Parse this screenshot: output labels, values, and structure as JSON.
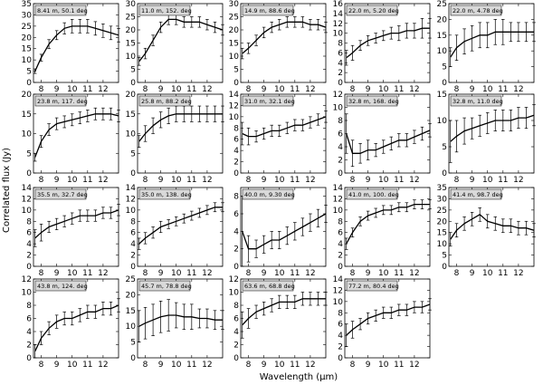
{
  "figure": {
    "xlabel": "Wavelength (μm)",
    "ylabel": "Correlated flux (Jy)"
  },
  "chart_data": [
    {
      "type": "line",
      "label": "8.41 m, 50.1 deg",
      "xlim": [
        7.5,
        13
      ],
      "ylim": [
        0,
        35
      ],
      "yticks": [
        0,
        5,
        10,
        15,
        20,
        25,
        30,
        35
      ],
      "x": [
        7.6,
        8.0,
        8.5,
        9.0,
        9.5,
        10.0,
        10.5,
        11.0,
        11.5,
        12.0,
        12.5,
        13.0
      ],
      "y": [
        5,
        11,
        17,
        21,
        24,
        25,
        25,
        25,
        24,
        23,
        22,
        21
      ],
      "err": [
        1,
        1.5,
        2,
        2,
        2.5,
        3,
        3,
        3,
        3,
        3,
        3,
        3
      ]
    },
    {
      "type": "line",
      "label": "11.0 m, 152. deg",
      "xlim": [
        7.5,
        13
      ],
      "ylim": [
        0,
        30
      ],
      "yticks": [
        0,
        5,
        10,
        15,
        20,
        25,
        30
      ],
      "x": [
        7.6,
        8.0,
        8.5,
        9.0,
        9.5,
        10.0,
        10.5,
        11.0,
        11.5,
        12.0,
        12.5,
        13.0
      ],
      "y": [
        8,
        11,
        16,
        21,
        24,
        24,
        23,
        23,
        23,
        22,
        21,
        20
      ],
      "err": [
        1.5,
        2,
        2,
        2,
        2,
        2,
        2,
        2,
        2,
        2,
        2,
        2
      ]
    },
    {
      "type": "line",
      "label": "14.9 m, 88.6 deg",
      "xlim": [
        7.5,
        13
      ],
      "ylim": [
        0,
        30
      ],
      "yticks": [
        0,
        5,
        10,
        15,
        20,
        25,
        30
      ],
      "x": [
        7.6,
        8.0,
        8.5,
        9.0,
        9.5,
        10.0,
        10.5,
        11.0,
        11.5,
        12.0,
        12.5,
        13.0
      ],
      "y": [
        11,
        13,
        16,
        19,
        21,
        22,
        23,
        23,
        23,
        22,
        22,
        21
      ],
      "err": [
        2,
        2,
        2,
        2,
        2,
        2,
        2,
        2,
        2,
        2,
        2,
        2
      ]
    },
    {
      "type": "line",
      "label": "22.0 m, 5.20 deg",
      "xlim": [
        7.5,
        13
      ],
      "ylim": [
        0,
        16
      ],
      "yticks": [
        0,
        2,
        4,
        6,
        8,
        10,
        12,
        14,
        16
      ],
      "x": [
        7.6,
        8.0,
        8.5,
        9.0,
        9.5,
        10.0,
        10.5,
        11.0,
        11.5,
        12.0,
        12.5,
        13.0
      ],
      "y": [
        5,
        6,
        7.5,
        8.5,
        9,
        9.5,
        10,
        10,
        10.5,
        10.5,
        11,
        11
      ],
      "err": [
        1.5,
        1.5,
        1,
        1,
        1,
        1,
        1.2,
        1.5,
        1.5,
        1.5,
        2,
        2
      ]
    },
    {
      "type": "line",
      "label": "22.0 m, 4.78 deg",
      "xlim": [
        7.5,
        13
      ],
      "ylim": [
        0,
        25
      ],
      "yticks": [
        0,
        5,
        10,
        15,
        20,
        25
      ],
      "x": [
        7.6,
        8.0,
        8.5,
        9.0,
        9.5,
        10.0,
        10.5,
        11.0,
        11.5,
        12.0,
        12.5,
        13.0
      ],
      "y": [
        8,
        11,
        13,
        14,
        15,
        15,
        16,
        16,
        16,
        16,
        16,
        16
      ],
      "err": [
        3,
        4,
        4,
        4,
        4,
        4,
        4,
        4,
        3,
        3,
        3,
        3
      ]
    },
    {
      "type": "line",
      "label": "23.8 m, 117. deg",
      "xlim": [
        7.5,
        13
      ],
      "ylim": [
        0,
        20
      ],
      "yticks": [
        0,
        5,
        10,
        15,
        20
      ],
      "x": [
        7.6,
        8.0,
        8.5,
        9.0,
        9.5,
        10.0,
        10.5,
        11.0,
        11.5,
        12.0,
        12.5,
        13.0
      ],
      "y": [
        4,
        8,
        11,
        12.5,
        13,
        13.5,
        14,
        14.5,
        15,
        15,
        15,
        14.5
      ],
      "err": [
        1,
        1.5,
        1.5,
        1.5,
        1.5,
        1.5,
        1.5,
        1.5,
        1.5,
        1.5,
        1.5,
        1.5
      ]
    },
    {
      "type": "line",
      "label": "25.8 m, 88.2 deg",
      "xlim": [
        7.5,
        13
      ],
      "ylim": [
        0,
        20
      ],
      "yticks": [
        0,
        5,
        10,
        15,
        20
      ],
      "x": [
        7.6,
        8.0,
        8.5,
        9.0,
        9.5,
        10.0,
        10.5,
        11.0,
        11.5,
        12.0,
        12.5,
        13.0
      ],
      "y": [
        8,
        10,
        12,
        13.5,
        14.5,
        15,
        15,
        15,
        15,
        15,
        15,
        15
      ],
      "err": [
        1.5,
        2,
        2,
        2,
        2,
        2,
        2,
        2,
        2,
        2,
        2,
        2
      ]
    },
    {
      "type": "line",
      "label": "31.0 m, 32.1 deg",
      "xlim": [
        7.5,
        13
      ],
      "ylim": [
        0,
        14
      ],
      "yticks": [
        0,
        2,
        4,
        6,
        8,
        10,
        12,
        14
      ],
      "x": [
        7.6,
        8.0,
        8.5,
        9.0,
        9.5,
        10.0,
        10.5,
        11.0,
        11.5,
        12.0,
        12.5,
        13.0
      ],
      "y": [
        7,
        6.5,
        6.5,
        7,
        7.5,
        7.5,
        8,
        8.5,
        8.5,
        9,
        9.5,
        10
      ],
      "err": [
        2,
        1.5,
        1,
        1,
        1,
        1,
        1,
        1,
        1,
        1,
        1,
        1
      ]
    },
    {
      "type": "line",
      "label": "32.8 m, 168. deg",
      "xlim": [
        7.5,
        13
      ],
      "ylim": [
        0,
        12
      ],
      "yticks": [
        0,
        2,
        4,
        6,
        8,
        10,
        12
      ],
      "x": [
        7.6,
        8.0,
        8.5,
        9.0,
        9.5,
        10.0,
        10.5,
        11.0,
        11.5,
        12.0,
        12.5,
        13.0
      ],
      "y": [
        6,
        3,
        3,
        3.5,
        3.5,
        4,
        4.5,
        5,
        5,
        5.5,
        6,
        6.5
      ],
      "err": [
        3,
        2,
        1.5,
        1.5,
        1,
        1,
        1,
        1,
        1,
        1,
        1,
        1
      ]
    },
    {
      "type": "line",
      "label": "32.8 m, 11.0 deg",
      "xlim": [
        7.5,
        13
      ],
      "ylim": [
        0,
        15
      ],
      "yticks": [
        0,
        5,
        10,
        15
      ],
      "x": [
        7.6,
        8.0,
        8.5,
        9.0,
        9.5,
        10.0,
        10.5,
        11.0,
        11.5,
        12.0,
        12.5,
        13.0
      ],
      "y": [
        6,
        7,
        8,
        8.5,
        9,
        9.5,
        10,
        10,
        10,
        10.5,
        10.5,
        11
      ],
      "err": [
        4,
        3,
        2.5,
        2,
        2,
        2,
        2,
        2,
        2,
        2,
        2,
        2
      ]
    },
    {
      "type": "line",
      "label": "35.5 m, 32.7 deg",
      "xlim": [
        7.5,
        13
      ],
      "ylim": [
        0,
        14
      ],
      "yticks": [
        0,
        2,
        4,
        6,
        8,
        10,
        12,
        14
      ],
      "x": [
        7.6,
        8.0,
        8.5,
        9.0,
        9.5,
        10.0,
        10.5,
        11.0,
        11.5,
        12.0,
        12.5,
        13.0
      ],
      "y": [
        5,
        6,
        7,
        7.5,
        8,
        8.5,
        9,
        9,
        9,
        9.5,
        9.5,
        10
      ],
      "err": [
        1.5,
        1.5,
        1,
        1,
        1,
        1,
        1,
        1,
        1,
        1,
        1,
        1
      ]
    },
    {
      "type": "line",
      "label": "35.0 m, 138. deg",
      "xlim": [
        7.5,
        13
      ],
      "ylim": [
        0,
        14
      ],
      "yticks": [
        0,
        2,
        4,
        6,
        8,
        10,
        12,
        14
      ],
      "x": [
        7.6,
        8.0,
        8.5,
        9.0,
        9.5,
        10.0,
        10.5,
        11.0,
        11.5,
        12.0,
        12.5,
        13.0
      ],
      "y": [
        4,
        5,
        6,
        7,
        7.5,
        8,
        8.5,
        9,
        9.5,
        10,
        10.5,
        10.5
      ],
      "err": [
        1,
        1,
        1,
        1,
        0.8,
        0.8,
        0.8,
        0.8,
        0.8,
        0.8,
        0.8,
        0.8
      ]
    },
    {
      "type": "line",
      "label": "40.0 m, 9.30 deg",
      "xlim": [
        7.5,
        13
      ],
      "ylim": [
        0,
        9
      ],
      "yticks": [
        0,
        2,
        4,
        6,
        8
      ],
      "x": [
        7.6,
        8.0,
        8.5,
        9.0,
        9.5,
        10.0,
        10.5,
        11.0,
        11.5,
        12.0,
        12.5,
        13.0
      ],
      "y": [
        4,
        2,
        2,
        2.5,
        3,
        3,
        3.5,
        4,
        4.5,
        5,
        5.5,
        6
      ],
      "err": [
        4,
        1.5,
        1,
        1,
        1,
        1,
        1,
        1,
        1,
        1,
        1,
        1
      ]
    },
    {
      "type": "line",
      "label": "41.0 m, 100. deg",
      "xlim": [
        7.5,
        13
      ],
      "ylim": [
        0,
        14
      ],
      "yticks": [
        0,
        2,
        4,
        6,
        8,
        10,
        12,
        14
      ],
      "x": [
        7.6,
        8.0,
        8.5,
        9.0,
        9.5,
        10.0,
        10.5,
        11.0,
        11.5,
        12.0,
        12.5,
        13.0
      ],
      "y": [
        4,
        6,
        8,
        9,
        9.5,
        10,
        10,
        10.5,
        10.5,
        11,
        11,
        11
      ],
      "err": [
        1,
        0.8,
        0.8,
        0.8,
        0.8,
        0.8,
        0.8,
        0.8,
        0.8,
        0.8,
        0.8,
        0.8
      ]
    },
    {
      "type": "line",
      "label": "41.4 m, 98.7 deg",
      "xlim": [
        7.5,
        13
      ],
      "ylim": [
        0,
        35
      ],
      "yticks": [
        0,
        5,
        10,
        15,
        20,
        25,
        30,
        35
      ],
      "x": [
        7.6,
        8.0,
        8.5,
        9.0,
        9.5,
        10.0,
        10.5,
        11.0,
        11.5,
        12.0,
        12.5,
        13.0
      ],
      "y": [
        12,
        16,
        19,
        21,
        23,
        20,
        19,
        18,
        18,
        17,
        17,
        16
      ],
      "err": [
        3,
        3,
        3,
        3,
        3,
        3,
        3,
        3,
        3,
        3,
        3,
        3
      ]
    },
    {
      "type": "line",
      "label": "43.8 m, 124. deg",
      "xlim": [
        7.5,
        13
      ],
      "ylim": [
        0,
        12
      ],
      "yticks": [
        0,
        2,
        4,
        6,
        8,
        10,
        12
      ],
      "x": [
        7.6,
        8.0,
        8.5,
        9.0,
        9.5,
        10.0,
        10.5,
        11.0,
        11.5,
        12.0,
        12.5,
        13.0
      ],
      "y": [
        1,
        3,
        4.5,
        5.5,
        6,
        6,
        6.5,
        7,
        7,
        7.5,
        7.5,
        8
      ],
      "err": [
        1,
        1,
        1,
        1,
        1,
        1,
        1,
        1,
        1,
        1,
        1,
        1
      ]
    },
    {
      "type": "line",
      "label": "45.7 m, 78.8 deg",
      "xlim": [
        7.5,
        13
      ],
      "ylim": [
        0,
        25
      ],
      "yticks": [
        0,
        5,
        10,
        15,
        20,
        25
      ],
      "x": [
        7.6,
        8.0,
        8.5,
        9.0,
        9.5,
        10.0,
        10.5,
        11.0,
        11.5,
        12.0,
        12.5,
        13.0
      ],
      "y": [
        10,
        11,
        12,
        13,
        13.5,
        13.5,
        13,
        13,
        12.5,
        12.5,
        12,
        12
      ],
      "err": [
        5,
        5,
        5,
        5,
        5,
        4,
        4,
        4,
        3,
        3,
        3,
        3
      ]
    },
    {
      "type": "line",
      "label": "63.6 m, 68.8 deg",
      "xlim": [
        7.5,
        13
      ],
      "ylim": [
        0,
        12
      ],
      "yticks": [
        0,
        2,
        4,
        6,
        8,
        10,
        12
      ],
      "x": [
        7.6,
        8.0,
        8.5,
        9.0,
        9.5,
        10.0,
        10.5,
        11.0,
        11.5,
        12.0,
        12.5,
        13.0
      ],
      "y": [
        5,
        6,
        7,
        7.5,
        8,
        8.5,
        8.5,
        8.5,
        9,
        9,
        9,
        9
      ],
      "err": [
        2,
        1.5,
        1,
        1,
        1,
        1,
        1,
        1,
        1,
        1,
        1,
        1
      ]
    },
    {
      "type": "line",
      "label": "77.2 m, 80.4 deg",
      "xlim": [
        7.5,
        13
      ],
      "ylim": [
        0,
        14
      ],
      "yticks": [
        0,
        2,
        4,
        6,
        8,
        10,
        12,
        14
      ],
      "x": [
        7.6,
        8.0,
        8.5,
        9.0,
        9.5,
        10.0,
        10.5,
        11.0,
        11.5,
        12.0,
        12.5,
        13.0
      ],
      "y": [
        4,
        5,
        6,
        7,
        7.5,
        8,
        8,
        8.5,
        8.5,
        9,
        9,
        9.5
      ],
      "err": [
        2,
        1.5,
        1,
        1,
        1,
        1,
        1,
        1,
        1,
        1,
        1,
        1
      ]
    }
  ]
}
